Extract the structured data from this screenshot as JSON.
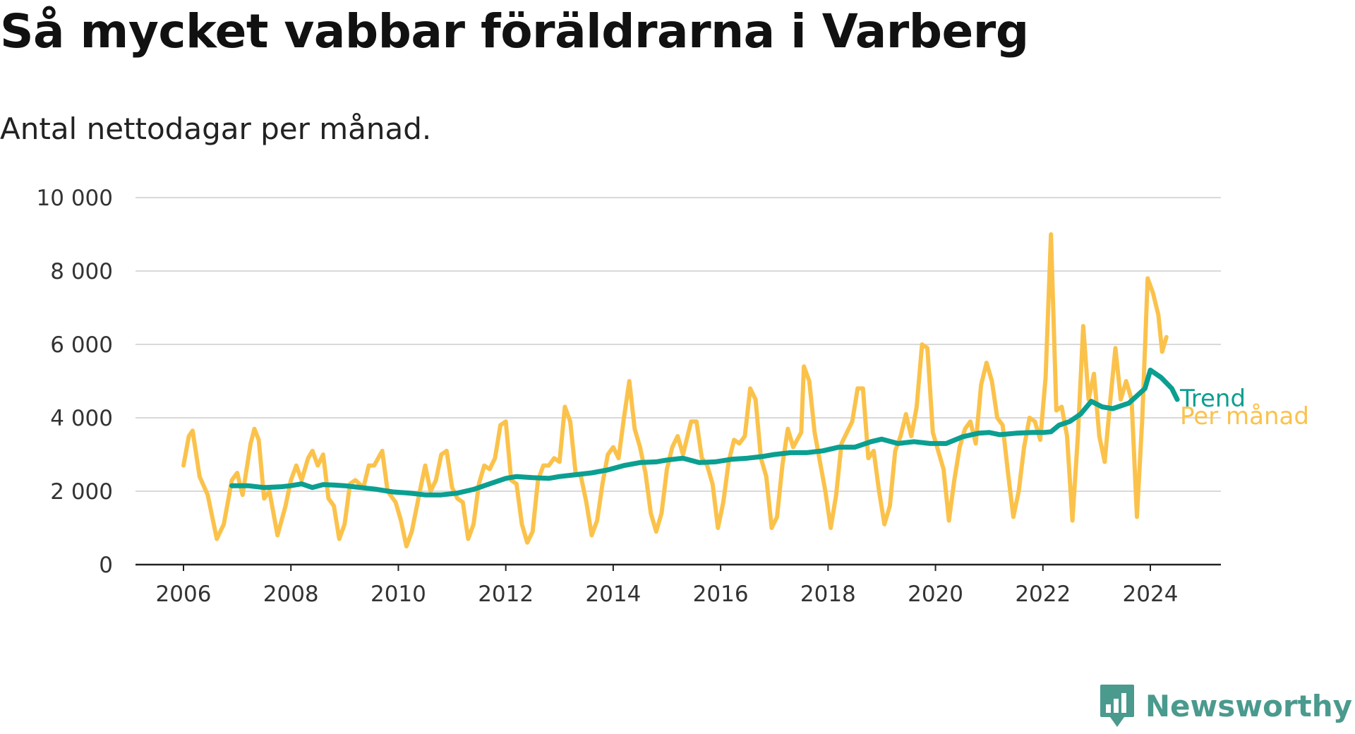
{
  "title": "Så mycket vabbar föräldrarna i Varberg",
  "subtitle": "Antal nettodagar per månad.",
  "brand": {
    "name": "Newsworthy",
    "logo_icon": "newsworthy-chart-bubble-icon",
    "color": "#4a9a8e"
  },
  "chart_data": {
    "type": "line",
    "title": "Så mycket vabbar föräldrarna i Varberg",
    "subtitle": "Antal nettodagar per månad.",
    "xlabel": "",
    "ylabel": "",
    "xlim": [
      2006,
      2024.5
    ],
    "ylim": [
      0,
      10000
    ],
    "x_ticks": [
      2006,
      2008,
      2010,
      2012,
      2014,
      2016,
      2018,
      2020,
      2022,
      2024
    ],
    "y_ticks": [
      0,
      2000,
      4000,
      6000,
      8000,
      10000
    ],
    "y_tick_labels": [
      "0",
      "2 000",
      "4 000",
      "6 000",
      "8 000",
      "10 000"
    ],
    "grid": "horizontal",
    "legend": "direct labels at right end of lines",
    "series": [
      {
        "name": "Per månad",
        "color": "#fbc24b",
        "points": [
          [
            2006.0,
            2700
          ],
          [
            2006.1,
            3500
          ],
          [
            2006.17,
            3650
          ],
          [
            2006.3,
            2400
          ],
          [
            2006.45,
            1900
          ],
          [
            2006.62,
            700
          ],
          [
            2006.75,
            1100
          ],
          [
            2006.9,
            2300
          ],
          [
            2007.0,
            2500
          ],
          [
            2007.1,
            1900
          ],
          [
            2007.25,
            3300
          ],
          [
            2007.32,
            3700
          ],
          [
            2007.4,
            3400
          ],
          [
            2007.5,
            1800
          ],
          [
            2007.6,
            2000
          ],
          [
            2007.75,
            800
          ],
          [
            2007.9,
            1600
          ],
          [
            2008.0,
            2300
          ],
          [
            2008.1,
            2700
          ],
          [
            2008.2,
            2300
          ],
          [
            2008.32,
            2900
          ],
          [
            2008.4,
            3100
          ],
          [
            2008.5,
            2700
          ],
          [
            2008.6,
            3000
          ],
          [
            2008.7,
            1800
          ],
          [
            2008.8,
            1600
          ],
          [
            2008.9,
            700
          ],
          [
            2009.0,
            1100
          ],
          [
            2009.1,
            2200
          ],
          [
            2009.2,
            2300
          ],
          [
            2009.35,
            2100
          ],
          [
            2009.45,
            2700
          ],
          [
            2009.55,
            2700
          ],
          [
            2009.7,
            3100
          ],
          [
            2009.8,
            2000
          ],
          [
            2009.95,
            1700
          ],
          [
            2010.05,
            1200
          ],
          [
            2010.15,
            500
          ],
          [
            2010.25,
            900
          ],
          [
            2010.4,
            2000
          ],
          [
            2010.5,
            2700
          ],
          [
            2010.6,
            2000
          ],
          [
            2010.7,
            2300
          ],
          [
            2010.8,
            3000
          ],
          [
            2010.9,
            3100
          ],
          [
            2011.0,
            2100
          ],
          [
            2011.1,
            1800
          ],
          [
            2011.2,
            1700
          ],
          [
            2011.3,
            700
          ],
          [
            2011.4,
            1100
          ],
          [
            2011.5,
            2200
          ],
          [
            2011.6,
            2700
          ],
          [
            2011.7,
            2600
          ],
          [
            2011.8,
            2900
          ],
          [
            2011.9,
            3800
          ],
          [
            2012.0,
            3900
          ],
          [
            2012.1,
            2300
          ],
          [
            2012.2,
            2200
          ],
          [
            2012.3,
            1100
          ],
          [
            2012.4,
            600
          ],
          [
            2012.5,
            900
          ],
          [
            2012.6,
            2300
          ],
          [
            2012.7,
            2700
          ],
          [
            2012.8,
            2700
          ],
          [
            2012.9,
            2900
          ],
          [
            2013.0,
            2800
          ],
          [
            2013.1,
            4300
          ],
          [
            2013.2,
            3900
          ],
          [
            2013.3,
            2500
          ],
          [
            2013.4,
            2400
          ],
          [
            2013.5,
            1700
          ],
          [
            2013.6,
            800
          ],
          [
            2013.7,
            1200
          ],
          [
            2013.8,
            2200
          ],
          [
            2013.9,
            3000
          ],
          [
            2014.0,
            3200
          ],
          [
            2014.1,
            2900
          ],
          [
            2014.2,
            4000
          ],
          [
            2014.3,
            5000
          ],
          [
            2014.4,
            3700
          ],
          [
            2014.5,
            3200
          ],
          [
            2014.6,
            2500
          ],
          [
            2014.7,
            1400
          ],
          [
            2014.8,
            900
          ],
          [
            2014.9,
            1400
          ],
          [
            2015.0,
            2600
          ],
          [
            2015.1,
            3200
          ],
          [
            2015.2,
            3500
          ],
          [
            2015.3,
            3000
          ],
          [
            2015.45,
            3900
          ],
          [
            2015.55,
            3900
          ],
          [
            2015.65,
            2900
          ],
          [
            2015.75,
            2700
          ],
          [
            2015.85,
            2200
          ],
          [
            2015.95,
            1000
          ],
          [
            2016.05,
            1700
          ],
          [
            2016.15,
            2800
          ],
          [
            2016.25,
            3400
          ],
          [
            2016.35,
            3300
          ],
          [
            2016.45,
            3500
          ],
          [
            2016.55,
            4800
          ],
          [
            2016.65,
            4500
          ],
          [
            2016.75,
            2900
          ],
          [
            2016.85,
            2400
          ],
          [
            2016.95,
            1000
          ],
          [
            2017.05,
            1300
          ],
          [
            2017.15,
            2700
          ],
          [
            2017.25,
            3700
          ],
          [
            2017.35,
            3200
          ],
          [
            2017.5,
            3600
          ],
          [
            2017.55,
            5400
          ],
          [
            2017.65,
            5000
          ],
          [
            2017.75,
            3600
          ],
          [
            2017.85,
            2800
          ],
          [
            2017.95,
            2000
          ],
          [
            2018.05,
            1000
          ],
          [
            2018.15,
            1900
          ],
          [
            2018.25,
            3300
          ],
          [
            2018.35,
            3600
          ],
          [
            2018.45,
            3900
          ],
          [
            2018.55,
            4800
          ],
          [
            2018.65,
            4800
          ],
          [
            2018.75,
            2900
          ],
          [
            2018.85,
            3100
          ],
          [
            2018.95,
            2000
          ],
          [
            2019.05,
            1100
          ],
          [
            2019.15,
            1600
          ],
          [
            2019.25,
            3100
          ],
          [
            2019.35,
            3500
          ],
          [
            2019.45,
            4100
          ],
          [
            2019.55,
            3500
          ],
          [
            2019.65,
            4300
          ],
          [
            2019.75,
            6000
          ],
          [
            2019.85,
            5900
          ],
          [
            2019.95,
            3600
          ],
          [
            2020.05,
            3100
          ],
          [
            2020.15,
            2600
          ],
          [
            2020.25,
            1200
          ],
          [
            2020.35,
            2300
          ],
          [
            2020.45,
            3200
          ],
          [
            2020.55,
            3700
          ],
          [
            2020.65,
            3900
          ],
          [
            2020.75,
            3300
          ],
          [
            2020.85,
            4900
          ],
          [
            2020.95,
            5500
          ],
          [
            2021.05,
            5000
          ],
          [
            2021.15,
            4000
          ],
          [
            2021.25,
            3800
          ],
          [
            2021.35,
            2500
          ],
          [
            2021.45,
            1300
          ],
          [
            2021.55,
            2000
          ],
          [
            2021.65,
            3200
          ],
          [
            2021.75,
            4000
          ],
          [
            2021.85,
            3900
          ],
          [
            2021.95,
            3400
          ],
          [
            2022.05,
            5100
          ],
          [
            2022.15,
            9000
          ],
          [
            2022.25,
            4200
          ],
          [
            2022.35,
            4300
          ],
          [
            2022.45,
            3500
          ],
          [
            2022.55,
            1200
          ],
          [
            2022.65,
            3500
          ],
          [
            2022.75,
            6500
          ],
          [
            2022.85,
            4500
          ],
          [
            2022.95,
            5200
          ],
          [
            2023.05,
            3500
          ],
          [
            2023.15,
            2800
          ],
          [
            2023.25,
            4400
          ],
          [
            2023.35,
            5900
          ],
          [
            2023.45,
            4500
          ],
          [
            2023.55,
            5000
          ],
          [
            2023.65,
            4500
          ],
          [
            2023.75,
            1300
          ],
          [
            2023.85,
            4000
          ],
          [
            2023.95,
            7800
          ],
          [
            2024.05,
            7400
          ],
          [
            2024.15,
            6800
          ],
          [
            2024.22,
            5800
          ],
          [
            2024.3,
            6200
          ]
        ]
      },
      {
        "name": "Trend",
        "color": "#0b9f91",
        "points": [
          [
            2006.9,
            2150
          ],
          [
            2007.2,
            2150
          ],
          [
            2007.5,
            2100
          ],
          [
            2007.8,
            2120
          ],
          [
            2008.0,
            2150
          ],
          [
            2008.2,
            2200
          ],
          [
            2008.4,
            2100
          ],
          [
            2008.6,
            2180
          ],
          [
            2008.8,
            2170
          ],
          [
            2009.0,
            2150
          ],
          [
            2009.3,
            2100
          ],
          [
            2009.6,
            2050
          ],
          [
            2009.9,
            1980
          ],
          [
            2010.2,
            1950
          ],
          [
            2010.5,
            1900
          ],
          [
            2010.8,
            1900
          ],
          [
            2011.1,
            1950
          ],
          [
            2011.4,
            2050
          ],
          [
            2011.7,
            2200
          ],
          [
            2012.0,
            2350
          ],
          [
            2012.2,
            2400
          ],
          [
            2012.5,
            2370
          ],
          [
            2012.8,
            2350
          ],
          [
            2013.0,
            2400
          ],
          [
            2013.3,
            2450
          ],
          [
            2013.6,
            2500
          ],
          [
            2013.9,
            2580
          ],
          [
            2014.2,
            2700
          ],
          [
            2014.5,
            2780
          ],
          [
            2014.8,
            2800
          ],
          [
            2015.0,
            2850
          ],
          [
            2015.3,
            2900
          ],
          [
            2015.6,
            2780
          ],
          [
            2015.9,
            2800
          ],
          [
            2016.2,
            2870
          ],
          [
            2016.5,
            2900
          ],
          [
            2016.8,
            2950
          ],
          [
            2017.0,
            3000
          ],
          [
            2017.3,
            3050
          ],
          [
            2017.6,
            3050
          ],
          [
            2017.9,
            3100
          ],
          [
            2018.2,
            3200
          ],
          [
            2018.5,
            3200
          ],
          [
            2018.8,
            3350
          ],
          [
            2019.0,
            3420
          ],
          [
            2019.3,
            3300
          ],
          [
            2019.6,
            3350
          ],
          [
            2019.9,
            3300
          ],
          [
            2020.2,
            3300
          ],
          [
            2020.5,
            3480
          ],
          [
            2020.8,
            3580
          ],
          [
            2021.0,
            3600
          ],
          [
            2021.2,
            3540
          ],
          [
            2021.5,
            3580
          ],
          [
            2021.8,
            3600
          ],
          [
            2022.0,
            3600
          ],
          [
            2022.15,
            3620
          ],
          [
            2022.3,
            3800
          ],
          [
            2022.5,
            3900
          ],
          [
            2022.7,
            4100
          ],
          [
            2022.9,
            4450
          ],
          [
            2023.1,
            4300
          ],
          [
            2023.3,
            4250
          ],
          [
            2023.6,
            4400
          ],
          [
            2023.9,
            4800
          ],
          [
            2024.0,
            5300
          ],
          [
            2024.2,
            5100
          ],
          [
            2024.4,
            4800
          ],
          [
            2024.5,
            4500
          ]
        ]
      }
    ]
  }
}
